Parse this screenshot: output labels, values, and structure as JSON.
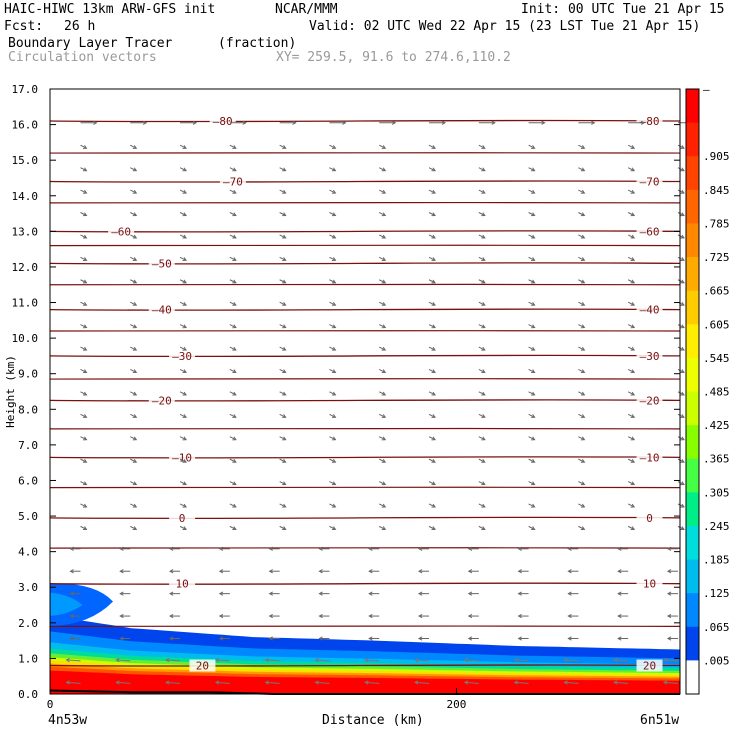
{
  "header": {
    "model": "HAIC-HIWC 13km ARW-GFS init",
    "org": "NCAR/MMM",
    "init": "Init: 00 UTC Tue 21 Apr 15",
    "fcst_label": "Fcst:",
    "fcst_value": "26 h",
    "valid": "Valid: 02 UTC Wed 22 Apr 15 (23 LST Tue 21 Apr 15)",
    "field": "Boundary Layer Tracer",
    "field_units": "(fraction)",
    "vectors": "Circulation vectors",
    "xy": "XY= 259.5, 91.6 to 274.6,110.2"
  },
  "chart_data": {
    "type": "cross-section",
    "ylabel": "Height (km)",
    "xlabel": "Distance (km)",
    "ylim": [
      0,
      17
    ],
    "xlim": [
      0,
      310
    ],
    "y_ticks": [
      "0.0",
      "1.0",
      "2.0",
      "3.0",
      "4.0",
      "5.0",
      "6.0",
      "7.0",
      "8.0",
      "9.0",
      "10.0",
      "11.0",
      "12.0",
      "13.0",
      "14.0",
      "15.0",
      "16.0",
      "17.0"
    ],
    "x_ticks": [
      {
        "value": 0,
        "label": "0"
      },
      {
        "value": 200,
        "label": "200"
      }
    ],
    "x_left_label": "4n53w",
    "x_right_label": "6n51w",
    "colorbar": {
      "labels": [
        "–",
        ".905",
        ".845",
        ".785",
        ".725",
        ".665",
        ".605",
        ".545",
        ".485",
        ".425",
        ".365",
        ".305",
        ".245",
        ".185",
        ".125",
        ".065",
        ".005"
      ],
      "colors": [
        "#ff0000",
        "#ff2200",
        "#ff4400",
        "#ff6600",
        "#ff8800",
        "#ffaa00",
        "#ffcc00",
        "#ffee00",
        "#eeff00",
        "#ccff00",
        "#88ff00",
        "#44ff44",
        "#00ee88",
        "#00dddd",
        "#00bbee",
        "#0088ff",
        "#0044ee",
        "#ffffff"
      ]
    },
    "tracer_top_km": [
      2.2,
      1.85,
      1.6,
      1.5,
      1.35,
      1.25
    ],
    "tracer_top_x": [
      0,
      40,
      100,
      160,
      230,
      310
    ],
    "temperature_contours": [
      {
        "label": "20",
        "y": 0.8,
        "label_x": [
          75,
          295
        ]
      },
      {
        "label": "10",
        "y": 3.1,
        "label_x": [
          65,
          295
        ]
      },
      {
        "label": "0",
        "y": 4.95,
        "label_x": [
          65,
          295
        ]
      },
      {
        "label": "–10",
        "y": 6.65,
        "label_x": [
          65,
          295
        ]
      },
      {
        "label": "–20",
        "y": 8.25,
        "label_x": [
          55,
          295
        ]
      },
      {
        "label": "–30",
        "y": 9.5,
        "label_x": [
          65,
          295
        ]
      },
      {
        "label": "–40",
        "y": 10.8,
        "label_x": [
          55,
          295
        ]
      },
      {
        "label": "–50",
        "y": 12.1,
        "label_x": [
          55
        ]
      },
      {
        "label": "–60",
        "y": 13.0,
        "label_x": [
          35,
          295
        ]
      },
      {
        "label": "–70",
        "y": 14.4,
        "label_x": [
          90,
          295
        ]
      },
      {
        "label": "–80",
        "y": 16.1,
        "label_x": [
          85,
          295
        ]
      }
    ],
    "extra_isotherms_km": [
      1.9,
      4.1,
      5.8,
      7.45,
      8.85,
      10.2,
      11.5,
      12.6,
      13.8,
      15.2
    ]
  }
}
